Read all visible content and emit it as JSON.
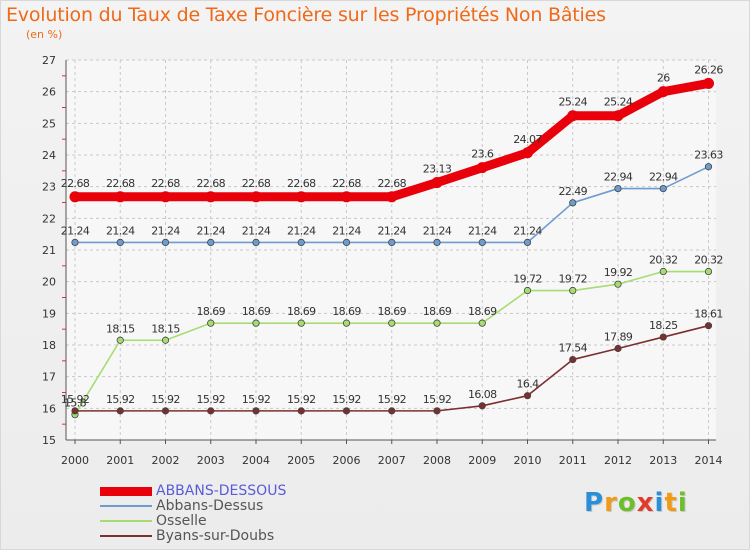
{
  "title": "Evolution du Taux de Taxe Foncière sur les Propriétés Non Bâties",
  "subtitle": "(en %)",
  "logo": {
    "text": "Proxiti",
    "letters": [
      "P",
      "r",
      "o",
      "x",
      "i",
      "t",
      "i"
    ],
    "colors": [
      "#2a8fd6",
      "#f09a16",
      "#6cbf2a",
      "#e23b2a",
      "#2a8fd6",
      "#f09a16",
      "#6cbf2a"
    ]
  },
  "chart_data": {
    "type": "line",
    "x": [
      "2000",
      "2001",
      "2002",
      "2003",
      "2004",
      "2005",
      "2006",
      "2007",
      "2008",
      "2009",
      "2010",
      "2011",
      "2012",
      "2013",
      "2014"
    ],
    "ylim": [
      15,
      27
    ],
    "yticks": [
      "15",
      "16",
      "17",
      "18",
      "19",
      "20",
      "21",
      "22",
      "23",
      "24",
      "25",
      "26",
      "27"
    ],
    "grid": true,
    "legend_position": "bottom-left",
    "series": [
      {
        "name": "ABBANS-DESSOUS",
        "color": "#e8000b",
        "emphasis": true,
        "values": [
          22.68,
          22.68,
          22.68,
          22.68,
          22.68,
          22.68,
          22.68,
          22.68,
          23.13,
          23.6,
          24.07,
          25.24,
          25.24,
          26,
          26.26
        ],
        "labels": [
          "22.68",
          "22.68",
          "22.68",
          "22.68",
          "22.68",
          "22.68",
          "22.68",
          "22.68",
          "23.13",
          "23.6",
          "24.07",
          "25.24",
          "25.24",
          "26",
          "26.26"
        ]
      },
      {
        "name": "Abbans-Dessus",
        "color": "#6f9ccf",
        "values": [
          21.24,
          21.24,
          21.24,
          21.24,
          21.24,
          21.24,
          21.24,
          21.24,
          21.24,
          21.24,
          21.24,
          22.49,
          22.94,
          22.94,
          23.63
        ],
        "labels": [
          "21.24",
          "21.24",
          "21.24",
          "21.24",
          "21.24",
          "21.24",
          "21.24",
          "21.24",
          "21.24",
          "21.24",
          "21.24",
          "22.49",
          "22.94",
          "22.94",
          "23.63"
        ]
      },
      {
        "name": "Osselle",
        "color": "#a6dd72",
        "values": [
          15.8,
          18.15,
          18.15,
          18.69,
          18.69,
          18.69,
          18.69,
          18.69,
          18.69,
          18.69,
          19.72,
          19.72,
          19.92,
          20.32,
          20.32
        ],
        "labels": [
          "15.8",
          "18.15",
          "18.15",
          "18.69",
          "18.69",
          "18.69",
          "18.69",
          "18.69",
          "18.69",
          "18.69",
          "19.72",
          "19.72",
          "19.92",
          "20.32",
          "20.32"
        ]
      },
      {
        "name": "Byans-sur-Doubs",
        "color": "#7b2f2f",
        "values": [
          15.92,
          15.92,
          15.92,
          15.92,
          15.92,
          15.92,
          15.92,
          15.92,
          15.92,
          16.08,
          16.4,
          17.54,
          17.89,
          18.25,
          18.61
        ],
        "labels": [
          "15.92",
          "15.92",
          "15.92",
          "15.92",
          "15.92",
          "15.92",
          "15.92",
          "15.92",
          "15.92",
          "16.08",
          "16.4",
          "17.54",
          "17.89",
          "18.25",
          "18.61"
        ]
      }
    ]
  }
}
